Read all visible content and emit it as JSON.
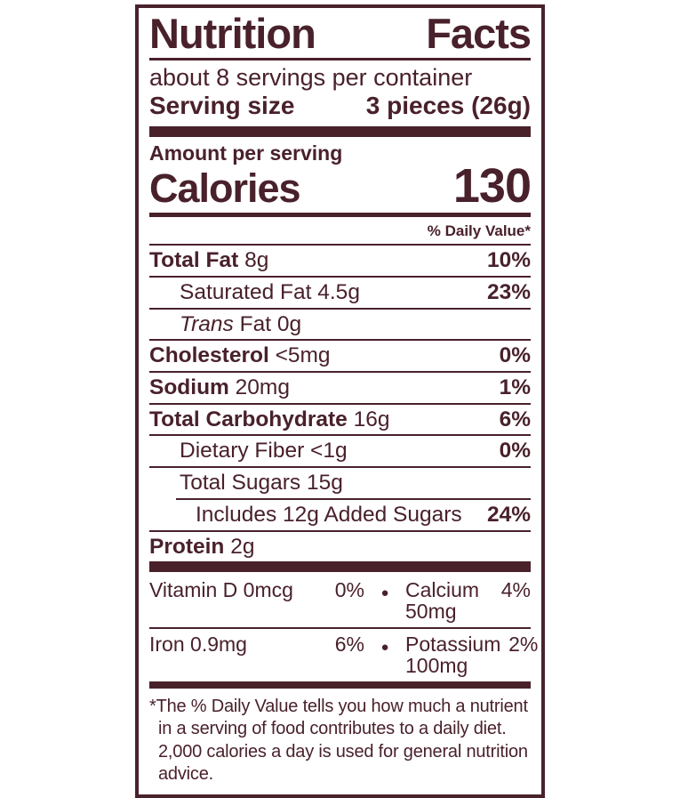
{
  "accent_color": "#49212b",
  "label": {
    "title_full": "Nutrition Facts",
    "title_words": [
      "Nutrition",
      "Facts"
    ],
    "servings_line": "about 8 servings per container",
    "serving_size_label": "Serving size",
    "serving_size_value": "3 pieces (26g)",
    "amount_per_serving": "Amount per serving",
    "calories_label": "Calories",
    "calories_value": "130",
    "daily_value_header": "% Daily Value*",
    "nutrients": [
      {
        "strong": "Total Fat",
        "normal": "8g",
        "pct": "10%"
      },
      {
        "normal": "Saturated Fat 4.5g",
        "pct": "23%"
      },
      {
        "italic": "Trans",
        "normal": "Fat 0g",
        "pct": ""
      },
      {
        "strong": "Cholesterol",
        "normal": "<5mg",
        "pct": "0%"
      },
      {
        "strong": "Sodium",
        "normal": "20mg",
        "pct": "1%"
      },
      {
        "strong": "Total Carbohydrate",
        "normal": "16g",
        "pct": "6%"
      },
      {
        "normal": "Dietary Fiber <1g",
        "pct": "0%"
      },
      {
        "normal": "Total Sugars 15g",
        "pct": ""
      },
      {
        "normal": "Includes 12g Added Sugars",
        "pct": "24%"
      },
      {
        "strong": "Protein",
        "normal": "2g",
        "pct": ""
      }
    ],
    "bullet": "●",
    "vitamins": [
      {
        "left": "Vitamin D 0mcg",
        "left_pct": "0%",
        "right": "Calcium 50mg",
        "right_pct": "4%"
      },
      {
        "left": "Iron 0.9mg",
        "left_pct": "6%",
        "right": "Potassium 100mg",
        "right_pct": "2%"
      }
    ],
    "footnote": "*The % Daily Value tells you how much a nutrient in a serving of food contributes to a daily diet. 2,000 calories a day is used for general nutrition advice."
  }
}
